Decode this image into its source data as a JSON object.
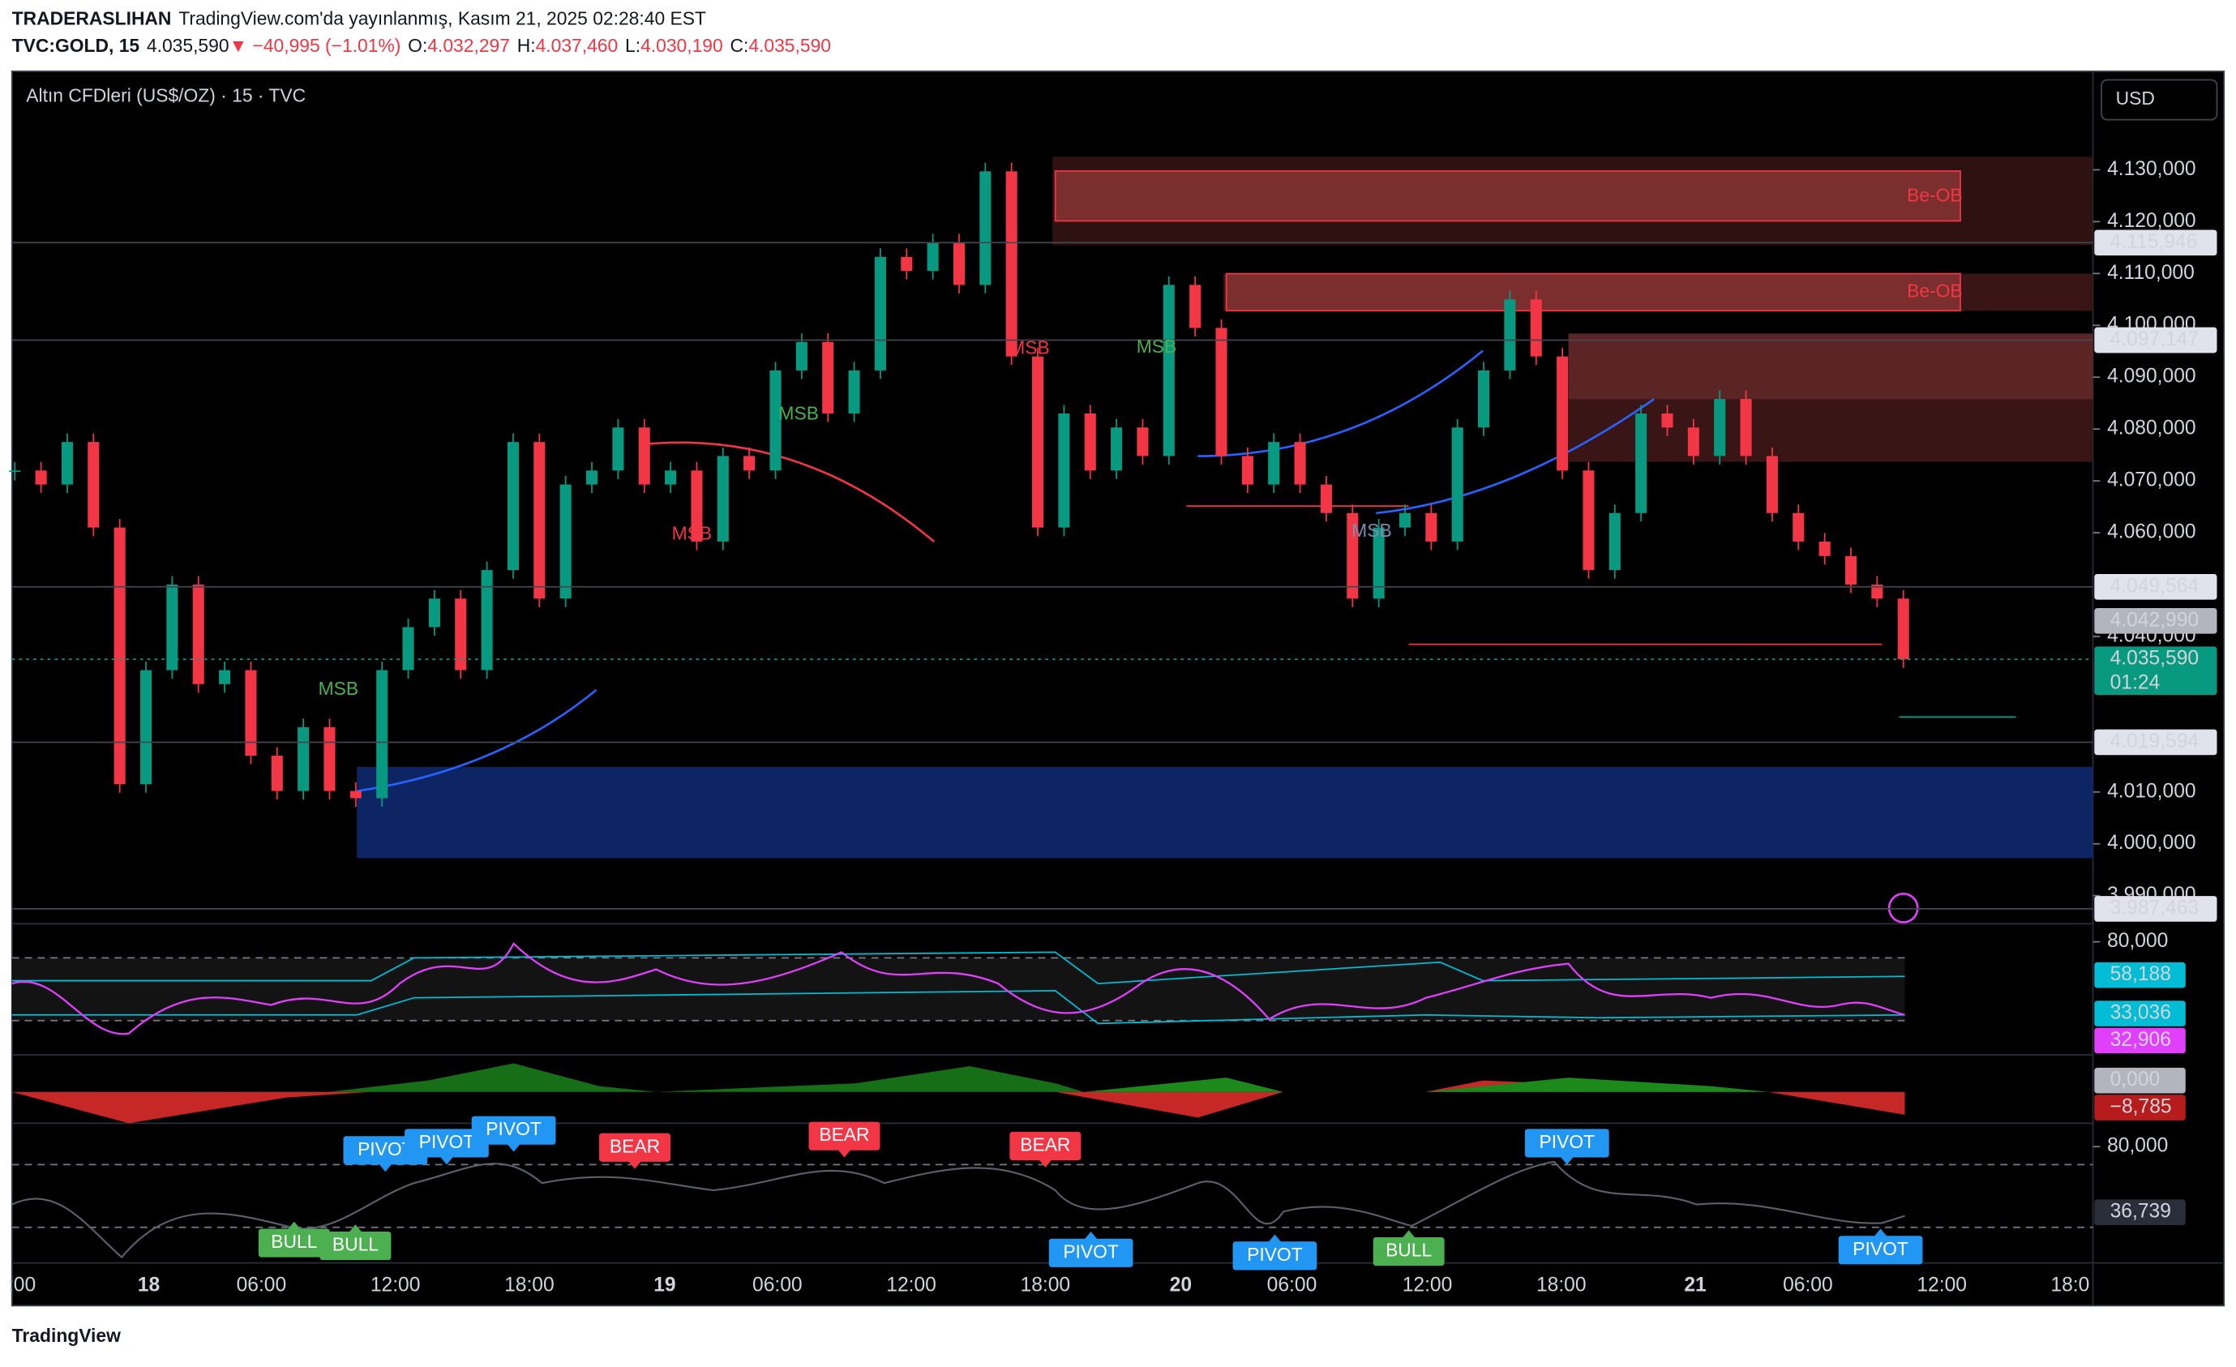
{
  "header": {
    "author": "TRADERASLIHAN",
    "published": "TradingView.com'da yayınlanmış, Kasım 21, 2025 02:28:40 EST"
  },
  "quote": {
    "symbol": "TVC:GOLD, 15",
    "last": "4.035,590",
    "change": "▼ −40,995 (−1.01%)",
    "ohlc": [
      {
        "label": "O:",
        "value": "4.032,297"
      },
      {
        "label": "H:",
        "value": "4.037,460"
      },
      {
        "label": "L:",
        "value": "4.030,190"
      },
      {
        "label": "C:",
        "value": "4.035,590"
      }
    ]
  },
  "legend": "Altın CFDleri (US$/OZ) · 15 · TVC",
  "currency": "USD",
  "price_chart": {
    "type": "candlestick",
    "up_color": "#089981",
    "down_color": "#f23645",
    "closes": [
      4072.0,
      4069.3,
      4077.5,
      4061.0,
      4011.5,
      4033.5,
      4050.0,
      4030.8,
      4033.5,
      4017.0,
      4010.2,
      4022.5,
      4010.2,
      4008.8,
      4033.5,
      4041.8,
      4047.3,
      4033.5,
      4052.8,
      4077.5,
      4047.3,
      4069.3,
      4072.0,
      4080.3,
      4069.3,
      4072.0,
      4058.3,
      4074.8,
      4072.0,
      4091.3,
      4096.8,
      4083.0,
      4091.3,
      4113.2,
      4110.5,
      4116.0,
      4107.8,
      4129.7,
      4094.0,
      4061.0,
      4083.0,
      4072.0,
      4080.3,
      4074.8,
      4107.8,
      4099.5,
      4074.8,
      4069.3,
      4077.5,
      4069.3,
      4063.8,
      4047.3,
      4061.0,
      4063.8,
      4058.3,
      4080.3,
      4091.3,
      4105.0,
      4094.0,
      4072.0,
      4052.8,
      4063.8,
      4083.0,
      4080.3,
      4074.8,
      4085.8,
      4074.8,
      4063.8,
      4058.3,
      4055.5,
      4050.0,
      4047.3,
      4035.59
    ],
    "ylim": [
      3984.6,
      4149
    ],
    "yticks": [
      {
        "value": 4130,
        "label": "4.130,000"
      },
      {
        "value": 4120,
        "label": "4.120,000"
      },
      {
        "value": 4110,
        "label": "4.110,000"
      },
      {
        "value": 4100,
        "label": "4.100,000"
      },
      {
        "value": 4090,
        "label": "4.090,000"
      },
      {
        "value": 4080,
        "label": "4.080,000"
      },
      {
        "value": 4070,
        "label": "4.070,000"
      },
      {
        "value": 4060,
        "label": "4.060,000"
      },
      {
        "value": 4040,
        "label": "4.040,000"
      },
      {
        "value": 4010,
        "label": "4.010,000"
      },
      {
        "value": 4000,
        "label": "4.000,000"
      },
      {
        "value": 3990,
        "label": "3.990,000"
      }
    ],
    "price_labels": [
      {
        "value": 4115.946,
        "label": "4.115,946",
        "color": "#e0e3eb"
      },
      {
        "value": 4097.147,
        "label": "4.097,147",
        "color": "#e0e3eb"
      },
      {
        "value": 4049.564,
        "label": "4.049,564",
        "color": "#e0e3eb"
      },
      {
        "value": 4042.99,
        "label": "4.042,990",
        "color": "#b2b5be"
      },
      {
        "value": 4035.59,
        "label": "4.035,590",
        "color": "#089981"
      },
      {
        "value": 4019.594,
        "label": "4.019,594",
        "color": "#e0e3eb"
      },
      {
        "value": 3987.463,
        "label": "3.987,463",
        "color": "#e0e3eb"
      }
    ],
    "countdown": "01:24",
    "x_labels": [
      ":00",
      "18",
      "06:00",
      "12:00",
      "18:00",
      "19",
      "06:00",
      "12:00",
      "18:00",
      "20",
      "06:00",
      "12:00",
      "18:00",
      "21",
      "06:00",
      "12:00",
      "18:0"
    ],
    "annotations": [
      {
        "text": "MSB",
        "color": "#4caf50"
      },
      {
        "text": "MSB",
        "color": "#f23645"
      },
      {
        "text": "MSB",
        "color": "#4caf50"
      },
      {
        "text": "MSB",
        "color": "#f23645"
      },
      {
        "text": "MSB",
        "color": "#4caf50"
      },
      {
        "text": "MSB",
        "color": "#7e8bb0"
      },
      {
        "text": "Be-OB",
        "color": "#f23645"
      },
      {
        "text": "Be-OB",
        "color": "#f23645"
      }
    ]
  },
  "panes": [
    {
      "ylim": [
        6,
        90
      ],
      "ticks": [
        {
          "value": 80,
          "label": "80,000"
        }
      ],
      "labels": [
        {
          "value": 58.188,
          "label": "58,188",
          "color": "#00bcd4"
        },
        {
          "value": 33.036,
          "label": "33,036",
          "color": "#00bcd4"
        },
        {
          "value": 32.906,
          "label": "32,906",
          "color": "#e040fb"
        }
      ]
    },
    {
      "ylim": [
        -14.1,
        7.8
      ],
      "ticks": [],
      "labels": [
        {
          "value": 0,
          "label": "0,000",
          "color": "#b2b5be"
        },
        {
          "value": -8.785,
          "label": "−8,785",
          "color": "#b71c1c"
        }
      ]
    },
    {
      "ylim": [
        3.4,
        93.5
      ],
      "ticks": [
        {
          "value": 80,
          "label": "80,000"
        }
      ],
      "labels": [
        {
          "value": 36.739,
          "label": "36,739",
          "color": "#2a2e39"
        }
      ]
    }
  ],
  "signals": [
    {
      "text": "PIVOT",
      "color": "#2196f3"
    },
    {
      "text": "PIVOT",
      "color": "#2196f3"
    },
    {
      "text": "PIVOT",
      "color": "#2196f3"
    },
    {
      "text": "BEAR",
      "color": "#f23645"
    },
    {
      "text": "BEAR",
      "color": "#f23645"
    },
    {
      "text": "BEAR",
      "color": "#f23645"
    },
    {
      "text": "BULL",
      "color": "#4caf50"
    },
    {
      "text": "BULL",
      "color": "#4caf50"
    },
    {
      "text": "PIVOT",
      "color": "#2196f3"
    },
    {
      "text": "PIVOT",
      "color": "#2196f3"
    },
    {
      "text": "BULL",
      "color": "#4caf50"
    },
    {
      "text": "PIVOT",
      "color": "#2196f3"
    },
    {
      "text": "PIVOT",
      "color": "#2196f3"
    }
  ],
  "footer": "TradingView"
}
